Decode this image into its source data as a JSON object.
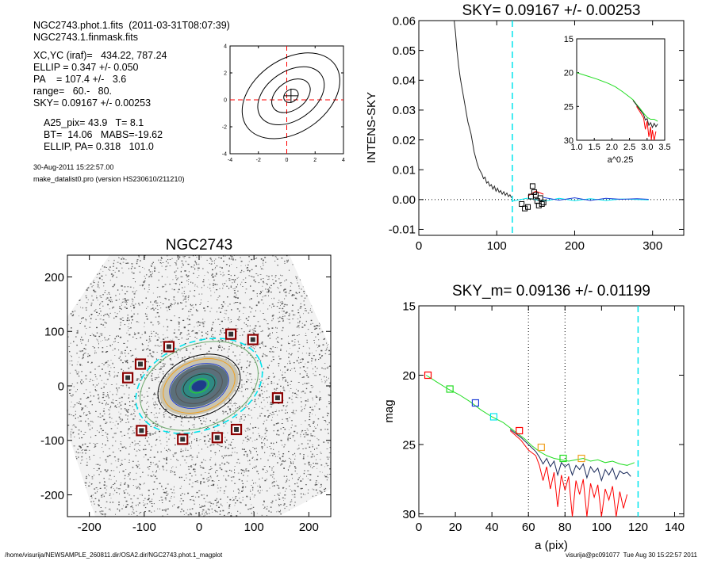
{
  "info": {
    "line1": "NGC2743.phot.1.fits  (2011-03-31T08:07:39)",
    "line2": "NGC2743.1.finmask.fits",
    "line3": "XC,YC (iraf)=   434.22, 787.24",
    "line4": "ELLIP = 0.347 +/- 0.050",
    "line5": "PA    = 107.4 +/-   3.6",
    "line6": "range=   60.-   80.",
    "line7": "SKY= 0.09167 +/- 0.00253",
    "line8": "A25_pix= 43.9   T= 8.1",
    "line9": "BT=  14.06   MABS=-19.62",
    "line10": "ELLIP, PA= 0.318   101.0",
    "date": "30-Aug-2011 15:22:57.00",
    "program": "make_datalist0.pro (version HS230610/211210)"
  },
  "footer": {
    "left": "/home/visurija/NEWSAMPLE_260811.dir/OSA2.dir/NGC2743.phot.1_magplot",
    "right": "visurija@pc091077  Tue Aug 30 15:22:57 2011"
  },
  "colors": {
    "cyan": "#00e5ee",
    "red": "#ff0000",
    "green": "#22dd22",
    "blue": "#1f3fd8",
    "orange": "#f0a020",
    "darkred": "#8b0000"
  },
  "chart_data": [
    {
      "id": "contour",
      "type": "contour",
      "xlim": [
        -4,
        4
      ],
      "ylim": [
        -4,
        4
      ],
      "xticks": [
        "-4",
        "-2",
        "0",
        "2",
        "4"
      ],
      "yticks": [
        "-4",
        "-2",
        "0",
        "2",
        "4"
      ],
      "center": [
        0.3,
        0.3
      ],
      "levels": [
        {
          "a": 0.55,
          "b": 0.45
        },
        {
          "a": 1.5,
          "b": 1.05
        },
        {
          "a": 2.6,
          "b": 1.8
        },
        {
          "a": 3.8,
          "b": 2.7
        }
      ]
    },
    {
      "id": "intens",
      "type": "line",
      "title": "SKY= 0.09167 +/- 0.00253",
      "ylabel": "INTENS-SKY",
      "xlim": [
        0,
        340
      ],
      "ylim": [
        -0.012,
        0.06
      ],
      "xticks": [
        "0",
        "100",
        "200",
        "300"
      ],
      "yticks": [
        "0.06",
        "0.05",
        "0.04",
        "0.03",
        "0.02",
        "0.01",
        "0.00",
        "-0.01"
      ],
      "vline_x": 120,
      "profile": [
        [
          45,
          0.061
        ],
        [
          47,
          0.056
        ],
        [
          49,
          0.05
        ],
        [
          51,
          0.045
        ],
        [
          53,
          0.041
        ],
        [
          55,
          0.038
        ],
        [
          57,
          0.035
        ],
        [
          59,
          0.032
        ],
        [
          61,
          0.029
        ],
        [
          63,
          0.026
        ],
        [
          65,
          0.024
        ],
        [
          67,
          0.022
        ],
        [
          69,
          0.019
        ],
        [
          71,
          0.016
        ],
        [
          73,
          0.014
        ],
        [
          75,
          0.012
        ],
        [
          77,
          0.0105
        ],
        [
          79,
          0.0095
        ],
        [
          81,
          0.0085
        ],
        [
          83,
          0.007
        ],
        [
          85,
          0.0075
        ],
        [
          87,
          0.0055
        ],
        [
          89,
          0.006
        ],
        [
          91,
          0.0045
        ],
        [
          93,
          0.005
        ],
        [
          95,
          0.0035
        ],
        [
          97,
          0.0045
        ],
        [
          99,
          0.0028
        ],
        [
          101,
          0.0038
        ],
        [
          103,
          0.0024
        ],
        [
          105,
          0.003
        ],
        [
          107,
          0.0018
        ],
        [
          109,
          0.0026
        ],
        [
          111,
          0.0014
        ],
        [
          113,
          0.0022
        ],
        [
          115,
          0.001
        ],
        [
          117,
          0.0016
        ],
        [
          119,
          0.0006
        ]
      ],
      "squares": [
        [
          132,
          -0.0015
        ],
        [
          136,
          -0.003
        ],
        [
          140,
          -0.0025
        ],
        [
          144,
          0.001
        ],
        [
          146,
          0.0045
        ],
        [
          148,
          0.0025
        ],
        [
          150,
          0.0015
        ],
        [
          152,
          -0.0005
        ],
        [
          154,
          -0.002
        ],
        [
          156,
          0.0005
        ],
        [
          158,
          -0.0015
        ],
        [
          160,
          -0.001
        ]
      ],
      "sky_cyan": [
        [
          120,
          -0.0005
        ],
        [
          140,
          0.0005
        ],
        [
          160,
          -0.0006
        ],
        [
          180,
          0.0004
        ],
        [
          200,
          -0.0004
        ],
        [
          220,
          0.0003
        ],
        [
          240,
          -0.0003
        ],
        [
          260,
          0.0002
        ],
        [
          280,
          0
        ],
        [
          295,
          -0.0001
        ]
      ],
      "sky_blue": [
        [
          160,
          0.0007
        ],
        [
          180,
          -0.0002
        ],
        [
          200,
          0.0006
        ],
        [
          220,
          -0.0003
        ],
        [
          240,
          0.0004
        ],
        [
          260,
          0.0001
        ],
        [
          280,
          0.0003
        ],
        [
          295,
          0.0001
        ]
      ],
      "sky_red": [
        [
          140,
          0.0012
        ],
        [
          150,
          0.0028
        ],
        [
          160,
          0.0018
        ]
      ],
      "inset": {
        "xlabel": "a^0.25",
        "xlim": [
          1.0,
          3.5
        ],
        "ylim": [
          15,
          30
        ],
        "xticks": [
          "1.0",
          "1.5",
          "2.0",
          "2.5",
          "3.0",
          "3.5"
        ],
        "yticks": [
          "15",
          "20",
          "25",
          "30"
        ],
        "green": [
          [
            1.0,
            20.0
          ],
          [
            1.3,
            20.5
          ],
          [
            1.6,
            21.0
          ],
          [
            1.9,
            21.6
          ],
          [
            2.1,
            22.1
          ],
          [
            2.3,
            22.8
          ],
          [
            2.5,
            23.6
          ],
          [
            2.6,
            24.0
          ],
          [
            2.7,
            24.7
          ],
          [
            2.8,
            25.3
          ],
          [
            2.9,
            26.0
          ],
          [
            3.0,
            26.6
          ],
          [
            3.1,
            26.9
          ],
          [
            3.2,
            26.9
          ],
          [
            3.3,
            27.2
          ]
        ],
        "black": [
          [
            2.6,
            24.1
          ],
          [
            2.7,
            24.8
          ],
          [
            2.8,
            25.5
          ],
          [
            2.9,
            26.2
          ],
          [
            2.95,
            27.0
          ],
          [
            3.0,
            26.8
          ],
          [
            3.05,
            27.8
          ],
          [
            3.1,
            27.4
          ],
          [
            3.15,
            28.1
          ],
          [
            3.2,
            27.5
          ],
          [
            3.25,
            28.0
          ],
          [
            3.3,
            27.6
          ]
        ],
        "red": [
          [
            2.7,
            25.0
          ],
          [
            2.8,
            25.8
          ],
          [
            2.9,
            26.7
          ],
          [
            2.95,
            28.4
          ],
          [
            3.0,
            27.2
          ],
          [
            3.05,
            29.5
          ],
          [
            3.1,
            28.0
          ],
          [
            3.12,
            30.0
          ],
          [
            3.15,
            28.5
          ],
          [
            3.2,
            30.0
          ],
          [
            3.25,
            28.7
          ]
        ]
      }
    },
    {
      "id": "image",
      "type": "image",
      "title": "NGC2743",
      "xlim": [
        -240,
        240
      ],
      "ylim": [
        -240,
        240
      ],
      "xticks": [
        "-200",
        "-100",
        "0",
        "100",
        "200"
      ],
      "yticks": [
        "200",
        "100",
        "0",
        "-100",
        "-200"
      ],
      "ellipses": [
        {
          "a": 120,
          "b": 80,
          "color": "cyan",
          "dash": true
        },
        {
          "a": 112,
          "b": 75,
          "color": "#6aa86a",
          "dash": false
        },
        {
          "a": 78,
          "b": 54,
          "color": "black",
          "dash": false
        },
        {
          "a": 68,
          "b": 46,
          "color": "orange",
          "dash": false
        },
        {
          "a": 56,
          "b": 38,
          "color": "blue",
          "dash": false
        },
        {
          "a": 44,
          "b": 30,
          "color": "#555555",
          "dash": false
        },
        {
          "a": 30,
          "b": 20,
          "color": "#333333",
          "dash": false
        },
        {
          "a": 18,
          "b": 12,
          "color": "green",
          "dash": false
        }
      ],
      "stars": [
        [
          -130,
          15
        ],
        [
          -107,
          40
        ],
        [
          -55,
          72
        ],
        [
          58,
          95
        ],
        [
          98,
          85
        ],
        [
          143,
          -22
        ],
        [
          68,
          -80
        ],
        [
          -105,
          -82
        ],
        [
          -30,
          -98
        ],
        [
          33,
          -95
        ]
      ]
    },
    {
      "id": "mag",
      "type": "line",
      "title": "SKY_m=  0.09136 +/- 0.01199",
      "xlabel": "a (pix)",
      "ylabel": "mag",
      "xlim": [
        0,
        145
      ],
      "ylim": [
        15,
        30.2
      ],
      "xticks": [
        "0",
        "20",
        "40",
        "60",
        "80",
        "100",
        "120",
        "140"
      ],
      "yticks": [
        "15",
        "20",
        "25",
        "30"
      ],
      "vlines": [
        {
          "x": 60,
          "style": "dotted"
        },
        {
          "x": 80,
          "style": "dotted"
        },
        {
          "x": 120,
          "style": "cyan"
        }
      ],
      "green": [
        [
          4,
          20.0
        ],
        [
          10,
          20.5
        ],
        [
          16,
          21.0
        ],
        [
          22,
          21.4
        ],
        [
          28,
          21.9
        ],
        [
          34,
          22.5
        ],
        [
          40,
          23.0
        ],
        [
          46,
          23.4
        ],
        [
          52,
          24.0
        ],
        [
          58,
          24.6
        ],
        [
          62,
          25.1
        ],
        [
          66,
          25.5
        ],
        [
          70,
          25.8
        ],
        [
          74,
          26.0
        ],
        [
          78,
          26.1
        ],
        [
          82,
          26.2
        ],
        [
          86,
          26.1
        ],
        [
          90,
          26.0
        ],
        [
          94,
          26.2
        ],
        [
          98,
          26.1
        ],
        [
          102,
          26.3
        ],
        [
          106,
          26.2
        ],
        [
          110,
          26.4
        ],
        [
          114,
          26.5
        ],
        [
          118,
          26.3
        ]
      ],
      "black": [
        [
          50,
          23.9
        ],
        [
          56,
          24.5
        ],
        [
          60,
          25.0
        ],
        [
          64,
          25.5
        ],
        [
          66,
          25.9
        ],
        [
          68,
          26.4
        ],
        [
          70,
          26.0
        ],
        [
          72,
          26.6
        ],
        [
          74,
          26.2
        ],
        [
          76,
          27.2
        ],
        [
          78,
          26.3
        ],
        [
          80,
          26.6
        ],
        [
          82,
          26.4
        ],
        [
          84,
          27.2
        ],
        [
          86,
          26.5
        ],
        [
          88,
          26.8
        ],
        [
          90,
          26.4
        ],
        [
          92,
          27.4
        ],
        [
          94,
          26.6
        ],
        [
          96,
          27.0
        ],
        [
          98,
          26.7
        ],
        [
          100,
          27.6
        ],
        [
          102,
          26.8
        ],
        [
          104,
          27.2
        ],
        [
          106,
          26.7
        ],
        [
          108,
          27.5
        ],
        [
          110,
          26.9
        ],
        [
          112,
          27.1
        ],
        [
          114,
          27.0
        ],
        [
          116,
          27.3
        ]
      ],
      "red": [
        [
          50,
          24.0
        ],
        [
          56,
          24.7
        ],
        [
          60,
          25.4
        ],
        [
          64,
          25.8
        ],
        [
          66,
          26.5
        ],
        [
          68,
          27.6
        ],
        [
          70,
          26.6
        ],
        [
          72,
          28.2
        ],
        [
          74,
          27.0
        ],
        [
          76,
          29.5
        ],
        [
          78,
          27.2
        ],
        [
          80,
          28.3
        ],
        [
          82,
          27.3
        ],
        [
          84,
          30.2
        ],
        [
          86,
          27.6
        ],
        [
          88,
          28.6
        ],
        [
          90,
          27.5
        ],
        [
          92,
          30.2
        ],
        [
          94,
          27.8
        ],
        [
          96,
          28.8
        ],
        [
          98,
          27.9
        ],
        [
          100,
          30.2
        ],
        [
          102,
          28.2
        ],
        [
          104,
          29.0
        ],
        [
          106,
          28.0
        ],
        [
          108,
          30.2
        ],
        [
          110,
          28.4
        ],
        [
          112,
          29.6
        ],
        [
          114,
          28.6
        ]
      ],
      "squares": [
        [
          5,
          20.0,
          "red"
        ],
        [
          17,
          21.0,
          "green"
        ],
        [
          31,
          22.0,
          "blue"
        ],
        [
          41,
          23.0,
          "cyan"
        ],
        [
          55,
          24.0,
          "red"
        ],
        [
          67,
          25.2,
          "orange"
        ],
        [
          79,
          26.0,
          "green"
        ],
        [
          89,
          26.0,
          "orange"
        ]
      ]
    }
  ]
}
